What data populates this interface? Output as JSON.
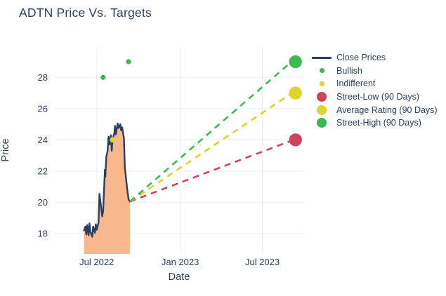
{
  "title": "ADTN Price Vs. Targets",
  "axes": {
    "x_title": "Date",
    "y_title": "Price"
  },
  "colors": {
    "text": "#2a3f5f",
    "line": "#2a3f5f",
    "area_fill": "#f8b88b",
    "grid": "#edf0f3",
    "green": "#3cb54e",
    "yellow": "#e0d52f",
    "red": "#d04459",
    "background": "#ffffff"
  },
  "legend": {
    "items": [
      {
        "label": "Close Prices",
        "type": "line",
        "color": "#2a3f5f"
      },
      {
        "label": "Bullish",
        "type": "dot-small",
        "color": "#3cb54e"
      },
      {
        "label": "Indifferent",
        "type": "dot-small",
        "color": "#e0d52f"
      },
      {
        "label": "Street-Low (90 Days)",
        "type": "dot-large",
        "color": "#d04459"
      },
      {
        "label": "Average Rating (90 Days)",
        "type": "dot-large",
        "color": "#e0d52f"
      },
      {
        "label": "Street-High (90 Days)",
        "type": "dot-large",
        "color": "#3cb54e"
      }
    ]
  },
  "chart_data": {
    "type": "line",
    "title": "ADTN Price Vs. Targets",
    "xlabel": "Date",
    "ylabel": "Price",
    "grid": true,
    "legend_position": "right-top",
    "x_ticks": [
      {
        "label": "Jul 2022",
        "date": "2022-07-01"
      },
      {
        "label": "Jan 2023",
        "date": "2023-01-01"
      },
      {
        "label": "Jul 2023",
        "date": "2023-07-01"
      }
    ],
    "y_ticks": [
      18,
      20,
      22,
      24,
      26,
      28
    ],
    "x_range": [
      "2022-03-29",
      "2023-10-01"
    ],
    "y_range": [
      16.7,
      29.9
    ],
    "close_prices": {
      "name": "Close Prices",
      "dates": [
        "2022-06-03",
        "2022-06-06",
        "2022-06-08",
        "2022-06-10",
        "2022-06-13",
        "2022-06-15",
        "2022-06-17",
        "2022-06-21",
        "2022-06-23",
        "2022-06-27",
        "2022-06-29",
        "2022-07-01",
        "2022-07-05",
        "2022-07-07",
        "2022-07-11",
        "2022-07-13",
        "2022-07-15",
        "2022-07-19",
        "2022-07-20",
        "2022-07-22",
        "2022-07-25",
        "2022-07-27",
        "2022-07-29",
        "2022-08-01",
        "2022-08-03",
        "2022-08-05",
        "2022-08-09",
        "2022-08-10",
        "2022-08-12",
        "2022-08-16",
        "2022-08-18",
        "2022-08-22",
        "2022-08-24",
        "2022-08-26",
        "2022-08-30",
        "2022-09-01",
        "2022-09-06",
        "2022-09-08",
        "2022-09-09",
        "2022-09-12"
      ],
      "prices": [
        18.2,
        18.45,
        17.95,
        18.55,
        17.9,
        18.65,
        18.1,
        17.8,
        18.45,
        18.05,
        18.6,
        18.25,
        18.7,
        20.55,
        19.6,
        19.1,
        19.45,
        22.1,
        21.65,
        22.9,
        23.3,
        24.2,
        23.7,
        24.3,
        23.3,
        24.05,
        24.45,
        24.9,
        24.35,
        25.05,
        24.75,
        25.0,
        24.6,
        24.8,
        24.1,
        22.2,
        20.9,
        20.45,
        20.2,
        20.05
      ]
    },
    "bullish_points": [
      {
        "date": "2022-07-15",
        "price": 28
      },
      {
        "date": "2022-09-09",
        "price": 29
      }
    ],
    "indifferent_points": [
      {
        "date": "2022-08-05",
        "price": 24
      }
    ],
    "last_close": {
      "date": "2022-09-12",
      "price": 20.05
    },
    "targets": [
      {
        "name": "Street-Low (90 Days)",
        "color": "#d04459",
        "date": "2023-09-12",
        "price": 24
      },
      {
        "name": "Average Rating (90 Days)",
        "color": "#ddd32c",
        "date": "2023-09-12",
        "price": 27
      },
      {
        "name": "Street-High (90 Days)",
        "color": "#3fb954",
        "date": "2023-09-12",
        "price": 29
      }
    ]
  }
}
